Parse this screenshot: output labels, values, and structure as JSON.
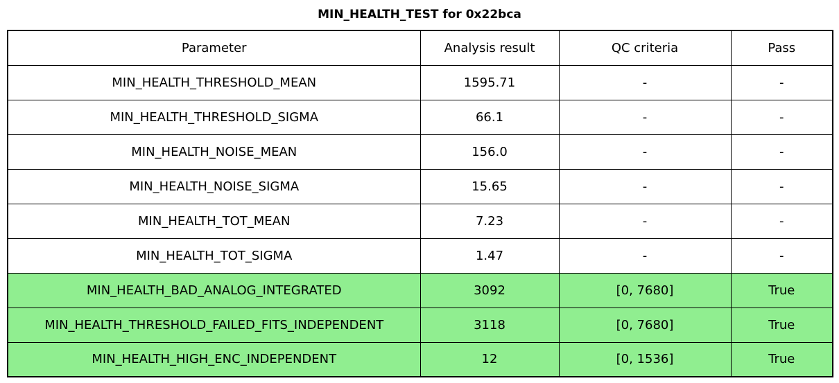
{
  "title": "MIN_HEALTH_TEST for 0x22bca",
  "table": {
    "columns": [
      "Parameter",
      "Analysis result",
      "QC criteria",
      "Pass"
    ],
    "rows": [
      {
        "parameter": "MIN_HEALTH_THRESHOLD_MEAN",
        "result": "1595.71",
        "qc": "-",
        "pass": "-",
        "highlight": false
      },
      {
        "parameter": "MIN_HEALTH_THRESHOLD_SIGMA",
        "result": "66.1",
        "qc": "-",
        "pass": "-",
        "highlight": false
      },
      {
        "parameter": "MIN_HEALTH_NOISE_MEAN",
        "result": "156.0",
        "qc": "-",
        "pass": "-",
        "highlight": false
      },
      {
        "parameter": "MIN_HEALTH_NOISE_SIGMA",
        "result": "15.65",
        "qc": "-",
        "pass": "-",
        "highlight": false
      },
      {
        "parameter": "MIN_HEALTH_TOT_MEAN",
        "result": "7.23",
        "qc": "-",
        "pass": "-",
        "highlight": false
      },
      {
        "parameter": "MIN_HEALTH_TOT_SIGMA",
        "result": "1.47",
        "qc": "-",
        "pass": "-",
        "highlight": false
      },
      {
        "parameter": "MIN_HEALTH_BAD_ANALOG_INTEGRATED",
        "result": "3092",
        "qc": "[0, 7680]",
        "pass": "True",
        "highlight": true
      },
      {
        "parameter": "MIN_HEALTH_THRESHOLD_FAILED_FITS_INDEPENDENT",
        "result": "3118",
        "qc": "[0, 7680]",
        "pass": "True",
        "highlight": true
      },
      {
        "parameter": "MIN_HEALTH_HIGH_ENC_INDEPENDENT",
        "result": "12",
        "qc": "[0, 1536]",
        "pass": "True",
        "highlight": true
      }
    ]
  },
  "colors": {
    "pass_row_background": "#90ee90",
    "border": "#000000",
    "text": "#000000",
    "background": "#ffffff"
  },
  "chart_data": {
    "type": "table",
    "title": "MIN_HEALTH_TEST for 0x22bca",
    "columns": [
      "Parameter",
      "Analysis result",
      "QC criteria",
      "Pass"
    ],
    "rows": [
      [
        "MIN_HEALTH_THRESHOLD_MEAN",
        "1595.71",
        "-",
        "-"
      ],
      [
        "MIN_HEALTH_THRESHOLD_SIGMA",
        "66.1",
        "-",
        "-"
      ],
      [
        "MIN_HEALTH_NOISE_MEAN",
        "156.0",
        "-",
        "-"
      ],
      [
        "MIN_HEALTH_NOISE_SIGMA",
        "15.65",
        "-",
        "-"
      ],
      [
        "MIN_HEALTH_TOT_MEAN",
        "7.23",
        "-",
        "-"
      ],
      [
        "MIN_HEALTH_TOT_SIGMA",
        "1.47",
        "-",
        "-"
      ],
      [
        "MIN_HEALTH_BAD_ANALOG_INTEGRATED",
        "3092",
        "[0, 7680]",
        "True"
      ],
      [
        "MIN_HEALTH_THRESHOLD_FAILED_FITS_INDEPENDENT",
        "3118",
        "[0, 7680]",
        "True"
      ],
      [
        "MIN_HEALTH_HIGH_ENC_INDEPENDENT",
        "12",
        "[0, 1536]",
        "True"
      ]
    ],
    "highlighted_row_indices": [
      6,
      7,
      8
    ],
    "highlight_color": "#90ee90",
    "layout": "title centered above full-width bordered table; all cells center-aligned"
  }
}
